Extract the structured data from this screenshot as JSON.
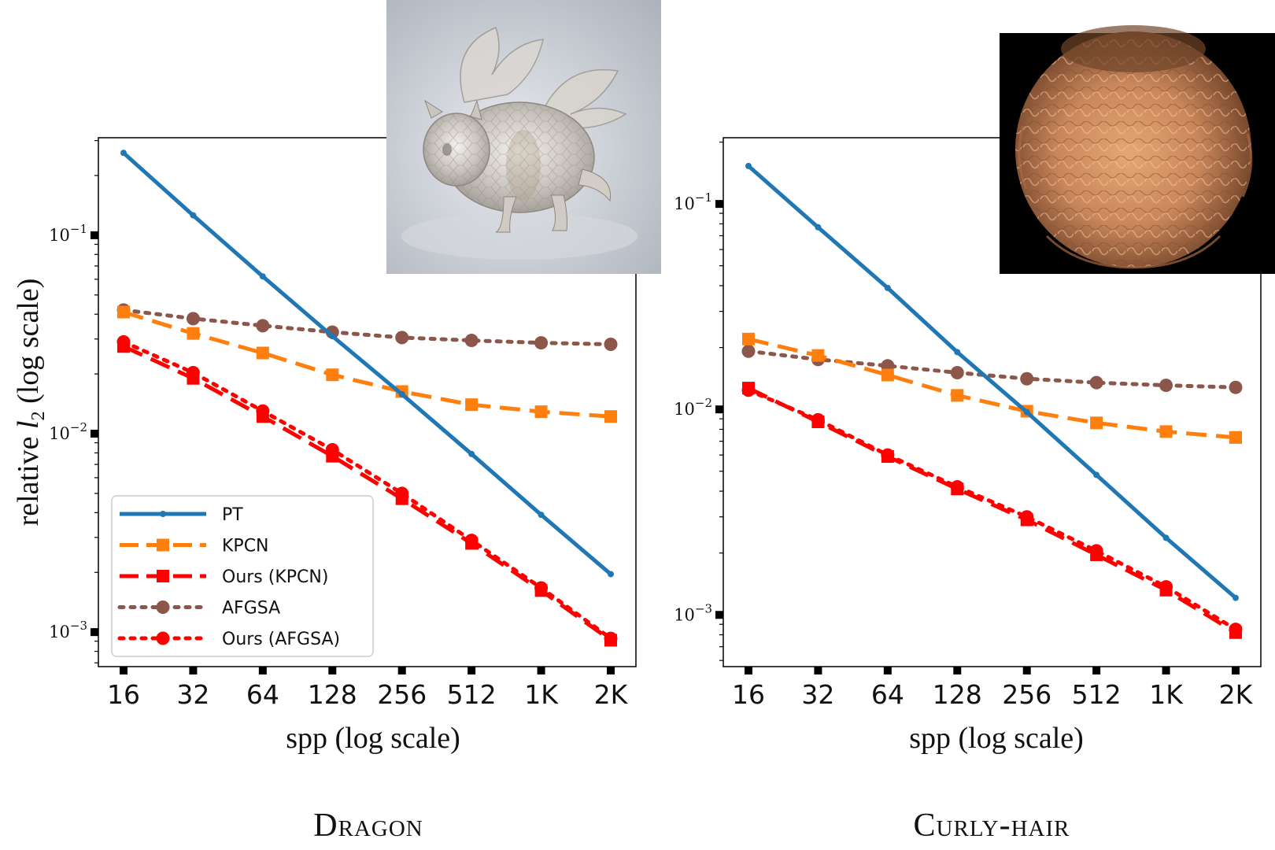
{
  "chart_data": [
    {
      "type": "line",
      "scene": "Dragon",
      "scene_title": "Dragon",
      "xlabel": "spp (log scale)",
      "ylabel": "relative l2 (log scale)",
      "ylabel_main": "relative ",
      "ylabel_var": "l",
      "ylabel_sub": "2",
      "ylabel_tail": " (log scale)",
      "x_scale": "log2",
      "y_scale": "log10",
      "x": [
        16,
        32,
        64,
        128,
        256,
        512,
        1024,
        2048
      ],
      "categories": [
        "16",
        "32",
        "64",
        "128",
        "256",
        "512",
        "1K",
        "2K"
      ],
      "ylim": [
        0.00067,
        0.31
      ],
      "yticks": [
        {
          "value": 0.1,
          "base": "10",
          "exp": "−1"
        },
        {
          "value": 0.01,
          "base": "10",
          "exp": "−2"
        },
        {
          "value": 0.001,
          "base": "10",
          "exp": "−3"
        }
      ],
      "legend_position": "lower-left",
      "thumbnail": "glass-dragon-render",
      "series": [
        {
          "name": "PT",
          "color": "#1f77b4",
          "style": "solid",
          "marker": "dot",
          "values": [
            0.26,
            0.126,
            0.062,
            0.031,
            0.0158,
            0.0079,
            0.0039,
            0.00196
          ]
        },
        {
          "name": "KPCN",
          "color": "#ff7f0e",
          "style": "dashed",
          "marker": "square",
          "values": [
            0.041,
            0.032,
            0.0255,
            0.0198,
            0.0163,
            0.014,
            0.0129,
            0.0122
          ]
        },
        {
          "name": "Ours (KPCN)",
          "color": "#ff0000",
          "style": "dashed",
          "marker": "square",
          "values": [
            0.0275,
            0.019,
            0.0122,
            0.0077,
            0.0047,
            0.0028,
            0.00162,
            0.00091
          ]
        },
        {
          "name": "AFGSA",
          "color": "#8c564b",
          "style": "dotted",
          "marker": "circle",
          "values": [
            0.042,
            0.038,
            0.035,
            0.0325,
            0.0305,
            0.0295,
            0.0287,
            0.0282
          ]
        },
        {
          "name": "Ours (AFGSA)",
          "color": "#ff0000",
          "style": "dotted",
          "marker": "circle",
          "values": [
            0.029,
            0.0203,
            0.013,
            0.0083,
            0.005,
            0.0029,
            0.00167,
            0.00093
          ]
        }
      ]
    },
    {
      "type": "line",
      "scene": "Curly-hair",
      "scene_title": "Curly-hair",
      "xlabel": "spp (log scale)",
      "x_scale": "log2",
      "y_scale": "log10",
      "x": [
        16,
        32,
        64,
        128,
        256,
        512,
        1024,
        2048
      ],
      "categories": [
        "16",
        "32",
        "64",
        "128",
        "256",
        "512",
        "1K",
        "2K"
      ],
      "ylim": [
        0.00056,
        0.21
      ],
      "yticks": [
        {
          "value": 0.1,
          "base": "10",
          "exp": "−1"
        },
        {
          "value": 0.01,
          "base": "10",
          "exp": "−2"
        },
        {
          "value": 0.001,
          "base": "10",
          "exp": "−3"
        }
      ],
      "thumbnail": "curly-hair-render",
      "series": [
        {
          "name": "PT",
          "color": "#1f77b4",
          "style": "solid",
          "marker": "dot",
          "values": [
            0.153,
            0.077,
            0.039,
            0.019,
            0.0097,
            0.0048,
            0.00237,
            0.00121
          ]
        },
        {
          "name": "KPCN",
          "color": "#ff7f0e",
          "style": "dashed",
          "marker": "square",
          "values": [
            0.022,
            0.0183,
            0.0147,
            0.0117,
            0.0098,
            0.0086,
            0.0078,
            0.0073
          ]
        },
        {
          "name": "Ours (KPCN)",
          "color": "#ff0000",
          "style": "dashed",
          "marker": "square",
          "values": [
            0.0127,
            0.0087,
            0.0059,
            0.0041,
            0.0029,
            0.00196,
            0.00132,
            0.00082
          ]
        },
        {
          "name": "AFGSA",
          "color": "#8c564b",
          "style": "dotted",
          "marker": "circle",
          "values": [
            0.0192,
            0.0175,
            0.0163,
            0.0151,
            0.0141,
            0.0135,
            0.0131,
            0.0128
          ]
        },
        {
          "name": "Ours (AFGSA)",
          "color": "#ff0000",
          "style": "dotted",
          "marker": "circle",
          "values": [
            0.0124,
            0.0089,
            0.006,
            0.0042,
            0.003,
            0.00205,
            0.00137,
            0.00085
          ]
        }
      ]
    }
  ]
}
